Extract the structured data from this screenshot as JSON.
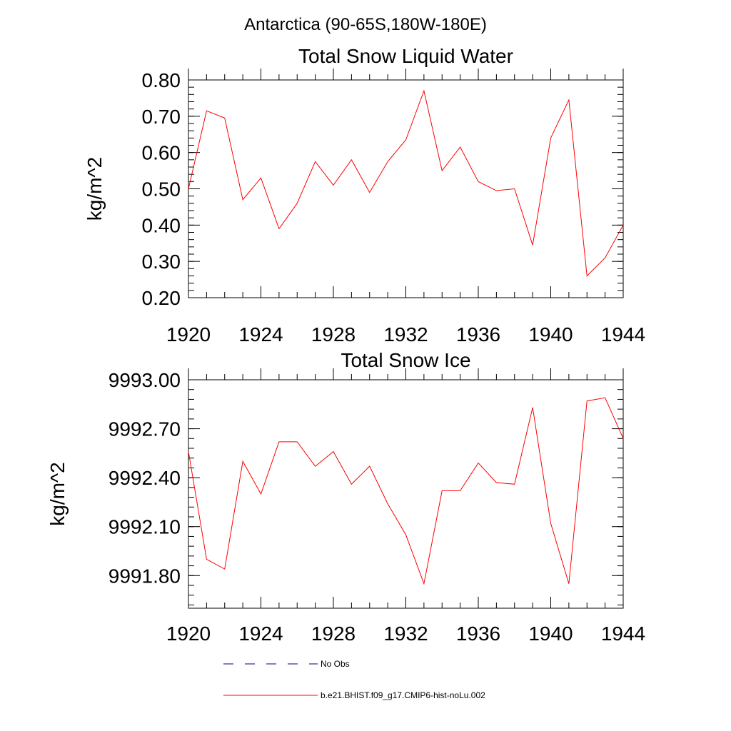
{
  "figure": {
    "title": "Antarctica (90-65S,180W-180E)"
  },
  "chart_data": [
    {
      "type": "line",
      "title": "Total Snow Liquid Water",
      "ylabel": "kg/m^2",
      "xlabel": "",
      "xlim": [
        1920,
        1944
      ],
      "ylim": [
        0.2,
        0.8
      ],
      "xticks": [
        "1920",
        "1924",
        "1928",
        "1932",
        "1936",
        "1940",
        "1944"
      ],
      "yticks": [
        "0.20",
        "0.30",
        "0.40",
        "0.50",
        "0.60",
        "0.70",
        "0.80"
      ],
      "grid": false,
      "series": [
        {
          "name": "b.e21.BHIST.f09_g17.CMIP6-hist-noLu.002",
          "color": "#ff0000",
          "x": [
            1920,
            1921,
            1922,
            1923,
            1924,
            1925,
            1926,
            1927,
            1928,
            1929,
            1930,
            1931,
            1932,
            1933,
            1934,
            1935,
            1936,
            1937,
            1938,
            1939,
            1940,
            1941,
            1942,
            1943,
            1944
          ],
          "y": [
            0.5,
            0.715,
            0.695,
            0.47,
            0.53,
            0.39,
            0.46,
            0.575,
            0.51,
            0.58,
            0.49,
            0.575,
            0.635,
            0.77,
            0.55,
            0.615,
            0.52,
            0.495,
            0.5,
            0.345,
            0.64,
            0.745,
            0.26,
            0.31,
            0.4
          ]
        }
      ]
    },
    {
      "type": "line",
      "title": "Total Snow Ice",
      "ylabel": "kg/m^2",
      "xlabel": "",
      "xlim": [
        1920,
        1944
      ],
      "ylim": [
        9991.6,
        9993.0
      ],
      "xticks": [
        "1920",
        "1924",
        "1928",
        "1932",
        "1936",
        "1940",
        "1944"
      ],
      "yticks": [
        "9991.80",
        "9992.10",
        "9992.40",
        "9992.70",
        "9993.00"
      ],
      "ytick_values": [
        9991.8,
        9992.1,
        9992.4,
        9992.7,
        9993.0
      ],
      "grid": false,
      "series": [
        {
          "name": "b.e21.BHIST.f09_g17.CMIP6-hist-noLu.002",
          "color": "#ff0000",
          "x": [
            1920,
            1921,
            1922,
            1923,
            1924,
            1925,
            1926,
            1927,
            1928,
            1929,
            1930,
            1931,
            1932,
            1933,
            1934,
            1935,
            1936,
            1937,
            1938,
            1939,
            1940,
            1941,
            1942,
            1943,
            1944
          ],
          "y": [
            9992.56,
            9991.9,
            9991.84,
            9992.5,
            9992.3,
            9992.62,
            9992.62,
            9992.47,
            9992.56,
            9992.36,
            9992.47,
            9992.24,
            9992.05,
            9991.75,
            9992.32,
            9992.32,
            9992.49,
            9992.37,
            9992.36,
            9992.83,
            9992.12,
            9991.75,
            9992.87,
            9992.89,
            9992.64
          ]
        }
      ]
    }
  ],
  "legend": {
    "placement": "bottom-center",
    "items": [
      {
        "label": "No Obs",
        "color": "#000080",
        "style": "dashed"
      },
      {
        "label": "b.e21.BHIST.f09_g17.CMIP6-hist-noLu.002",
        "color": "#ff0000",
        "style": "solid"
      }
    ]
  }
}
